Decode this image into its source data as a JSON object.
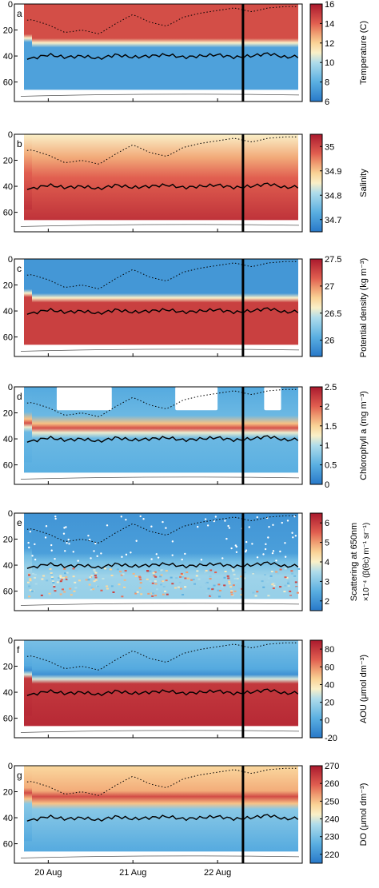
{
  "chart_data": {
    "type": "heatmap",
    "x": {
      "ticks": [
        "20 Aug",
        "21 Aug",
        "22 Aug"
      ],
      "range_days": [
        19.6,
        23.0
      ],
      "tick_days": [
        20,
        21,
        22
      ],
      "marker_day": 22.3
    },
    "y": {
      "ticks": [
        "0",
        "20",
        "40",
        "60"
      ],
      "ylim": [
        75,
        0
      ],
      "reversed": true
    },
    "mixed_layer": {
      "x_days": [
        19.6,
        19.8,
        20.0,
        20.2,
        20.4,
        20.6,
        20.8,
        21.0,
        21.2,
        21.4,
        21.6,
        21.8,
        22.0,
        22.2,
        22.4,
        22.6,
        22.8,
        23.0
      ],
      "depth": [
        14,
        12,
        16,
        22,
        20,
        23,
        15,
        8,
        14,
        17,
        10,
        7,
        5,
        3,
        6,
        3,
        2,
        2
      ]
    },
    "isopycnal": {
      "x_days": [
        19.6,
        19.8,
        20.0,
        20.2,
        20.4,
        20.6,
        20.8,
        21.0,
        21.2,
        21.4,
        21.6,
        21.8,
        22.0,
        22.2,
        22.4,
        22.6,
        22.8,
        23.0
      ],
      "depth": [
        40,
        42,
        39,
        41,
        40,
        42,
        39,
        41,
        40,
        39,
        41,
        40,
        39,
        41,
        40,
        38,
        41,
        40
      ]
    },
    "panels": [
      {
        "label": "a",
        "colorbar_label": "Temperature (C)",
        "cmin": 6,
        "cmax": 16,
        "colorbar_ticks": [
          "16",
          "14",
          "12",
          "10",
          "8",
          "6"
        ],
        "upper_value": 14.5,
        "lower_value": 7.5,
        "kind": "step",
        "gradient": 0
      },
      {
        "label": "b",
        "colorbar_label": "Salinity",
        "cmin": 34.65,
        "cmax": 35.05,
        "colorbar_ticks": [
          "35",
          "34.9",
          "34.8",
          "34.7"
        ],
        "upper_value": 34.9,
        "lower_value": 35.0,
        "kind": "salinity",
        "gradient": 0
      },
      {
        "label": "c",
        "colorbar_label": "Potential density (kg m⁻³)",
        "cmin": 25.7,
        "cmax": 27.5,
        "colorbar_ticks": [
          "27.5",
          "27",
          "26.5",
          "26"
        ],
        "upper_value": 25.9,
        "lower_value": 27.3,
        "kind": "step",
        "gradient": 0
      },
      {
        "label": "d",
        "colorbar_label": "Chlorophyll a (mg m⁻³)",
        "cmin": 0,
        "cmax": 2.5,
        "colorbar_ticks": [
          "2.5",
          "2",
          "1.5",
          "1",
          "0.5",
          "0"
        ],
        "upper_value": 0.6,
        "lower_value": 0.5,
        "kind": "chl",
        "gradient": 0
      },
      {
        "label": "e",
        "colorbar_label": "Scattering at 650nm",
        "colorbar_label2": "×10⁻⁴ (β(θc) m⁻¹ sr⁻¹)",
        "cmin": 1.5,
        "cmax": 6.5,
        "colorbar_ticks": [
          "6",
          "5",
          "4",
          "3",
          "2"
        ],
        "upper_value": 2.0,
        "lower_value": 3.0,
        "kind": "scatter",
        "gradient": 0
      },
      {
        "label": "f",
        "colorbar_label": "AOU (μmol dm⁻³)",
        "cmin": -20,
        "cmax": 90,
        "colorbar_ticks": [
          "80",
          "60",
          "40",
          "20",
          "0",
          "-20"
        ],
        "upper_value": 5,
        "lower_value": 85,
        "kind": "aou",
        "gradient": 0
      },
      {
        "label": "g",
        "colorbar_label": "DO (μmol dm⁻³)",
        "cmin": 215,
        "cmax": 270,
        "colorbar_ticks": [
          "270",
          "260",
          "250",
          "240",
          "230",
          "220"
        ],
        "upper_value": 245,
        "lower_value": 227,
        "kind": "do",
        "gradient": 0
      }
    ]
  }
}
